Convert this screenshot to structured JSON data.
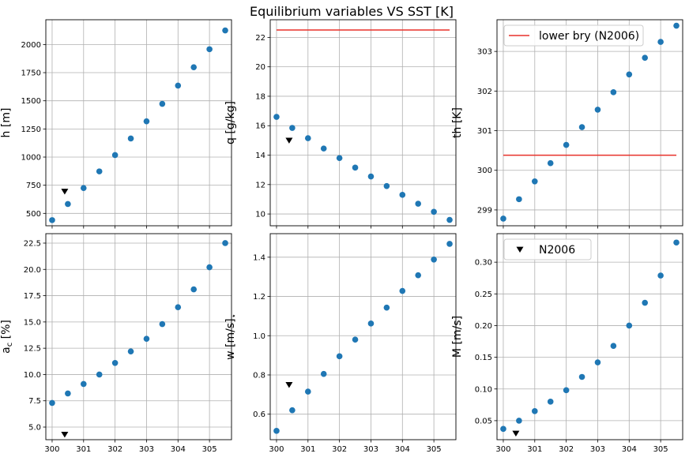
{
  "figure": {
    "title": "Equilibrium variables VS SST [K]",
    "colors": {
      "points": "#1f77b4",
      "reference": "#000000",
      "bound": "#e8312a",
      "grid": "#b0b0b0"
    }
  },
  "chart_data": [
    {
      "type": "scatter",
      "ylabel": "h [m]",
      "xlim": [
        299.8,
        305.7
      ],
      "ylim": [
        390,
        2220
      ],
      "xticks": [
        300,
        301,
        302,
        303,
        304,
        305
      ],
      "yticks": [
        500,
        750,
        1000,
        1250,
        1500,
        1750,
        2000
      ],
      "ytick_labels": [
        "500",
        "750",
        "1000",
        "1250",
        "1500",
        "1750",
        "2000"
      ],
      "show_xtick_labels": false,
      "x": [
        300,
        300.5,
        301,
        301.5,
        302,
        302.5,
        303,
        303.5,
        304,
        304.5,
        305,
        305.5
      ],
      "y": [
        440,
        583,
        725,
        873,
        1018,
        1165,
        1318,
        1473,
        1635,
        1798,
        1958,
        2125
      ],
      "reference": {
        "x": 300.4,
        "y": 695
      },
      "grid": true
    },
    {
      "type": "scatter",
      "ylabel": "q [g/kg]",
      "xlim": [
        299.8,
        305.7
      ],
      "ylim": [
        9.2,
        23.2
      ],
      "xticks": [
        300,
        301,
        302,
        303,
        304,
        305
      ],
      "yticks": [
        10,
        12,
        14,
        16,
        18,
        20,
        22
      ],
      "ytick_labels": [
        "10",
        "12",
        "14",
        "16",
        "18",
        "20",
        "22"
      ],
      "show_xtick_labels": false,
      "x": [
        300,
        300.5,
        301,
        301.5,
        302,
        302.5,
        303,
        303.5,
        304,
        304.5,
        305,
        305.5
      ],
      "y": [
        16.6,
        15.85,
        15.15,
        14.45,
        13.8,
        13.15,
        12.55,
        11.9,
        11.3,
        10.7,
        10.15,
        9.6
      ],
      "reference": {
        "x": 300.4,
        "y": 15.0
      },
      "bound": {
        "x": [
          300,
          305.5
        ],
        "y": 22.5
      },
      "grid": true
    },
    {
      "type": "scatter",
      "ylabel": "th [K]",
      "xlim": [
        299.8,
        305.7
      ],
      "ylim": [
        298.6,
        303.8
      ],
      "xticks": [
        300,
        301,
        302,
        303,
        304,
        305
      ],
      "yticks": [
        299,
        300,
        301,
        302,
        303
      ],
      "ytick_labels": [
        "299",
        "300",
        "301",
        "302",
        "303"
      ],
      "show_xtick_labels": false,
      "x": [
        300,
        300.5,
        301,
        301.5,
        302,
        302.5,
        303,
        303.5,
        304,
        304.5,
        305,
        305.5
      ],
      "y": [
        298.78,
        299.27,
        299.72,
        300.18,
        300.64,
        301.09,
        301.53,
        301.97,
        302.42,
        302.84,
        303.24,
        303.65
      ],
      "bound": {
        "x": [
          300,
          305.5
        ],
        "y": 300.38
      },
      "legend": {
        "label": "lower bry (N2006)",
        "loc": "upper-left"
      },
      "grid": true
    },
    {
      "type": "scatter",
      "ylabel": "a [%]",
      "ylabel_sub": "c",
      "xlim": [
        299.8,
        305.7
      ],
      "ylim": [
        3.8,
        23.4
      ],
      "xticks": [
        300,
        301,
        302,
        303,
        304,
        305
      ],
      "xtick_labels": [
        "300",
        "301",
        "302",
        "303",
        "304",
        "305"
      ],
      "yticks": [
        5,
        7.5,
        10,
        12.5,
        15,
        17.5,
        20,
        22.5
      ],
      "ytick_labels": [
        "5.0",
        "7.5",
        "10.0",
        "12.5",
        "15.0",
        "17.5",
        "20.0",
        "22.5"
      ],
      "show_xtick_labels": true,
      "x": [
        300,
        300.5,
        301,
        301.5,
        302,
        302.5,
        303,
        303.5,
        304,
        304.5,
        305,
        305.5
      ],
      "y": [
        7.3,
        8.2,
        9.1,
        10.0,
        11.1,
        12.2,
        13.4,
        14.8,
        16.4,
        18.1,
        20.2,
        22.5
      ],
      "reference": {
        "x": 300.4,
        "y": 4.3
      },
      "grid": true
    },
    {
      "type": "scatter",
      "ylabel": "w [m/s]",
      "ylabel_sub": "⋆",
      "xlim": [
        299.8,
        305.7
      ],
      "ylim": [
        0.47,
        1.52
      ],
      "xticks": [
        300,
        301,
        302,
        303,
        304,
        305
      ],
      "xtick_labels": [
        "300",
        "301",
        "302",
        "303",
        "304",
        "305"
      ],
      "yticks": [
        0.6,
        0.8,
        1.0,
        1.2,
        1.4
      ],
      "ytick_labels": [
        "0.6",
        "0.8",
        "1.0",
        "1.2",
        "1.4"
      ],
      "show_xtick_labels": true,
      "x": [
        300,
        300.5,
        301,
        301.5,
        302,
        302.5,
        303,
        303.5,
        304,
        304.5,
        305,
        305.5
      ],
      "y": [
        0.515,
        0.62,
        0.715,
        0.805,
        0.895,
        0.98,
        1.062,
        1.143,
        1.228,
        1.308,
        1.388,
        1.468
      ],
      "reference": {
        "x": 300.4,
        "y": 0.75
      },
      "grid": true
    },
    {
      "type": "scatter",
      "ylabel": "M [m/s]",
      "xlim": [
        299.8,
        305.7
      ],
      "ylim": [
        0.02,
        0.345
      ],
      "xticks": [
        300,
        301,
        302,
        303,
        304,
        305
      ],
      "xtick_labels": [
        "300",
        "301",
        "302",
        "303",
        "304",
        "305"
      ],
      "yticks": [
        0.05,
        0.1,
        0.15,
        0.2,
        0.25,
        0.3
      ],
      "ytick_labels": [
        "0.05",
        "0.10",
        "0.15",
        "0.20",
        "0.25",
        "0.30"
      ],
      "show_xtick_labels": true,
      "x": [
        300,
        300.5,
        301,
        301.5,
        302,
        302.5,
        303,
        303.5,
        304,
        304.5,
        305,
        305.5
      ],
      "y": [
        0.037,
        0.05,
        0.065,
        0.08,
        0.098,
        0.119,
        0.142,
        0.168,
        0.2,
        0.236,
        0.279,
        0.331
      ],
      "reference": {
        "x": 300.4,
        "y": 0.03
      },
      "legend": {
        "label": "N2006",
        "loc": "upper-left"
      },
      "grid": true
    }
  ]
}
